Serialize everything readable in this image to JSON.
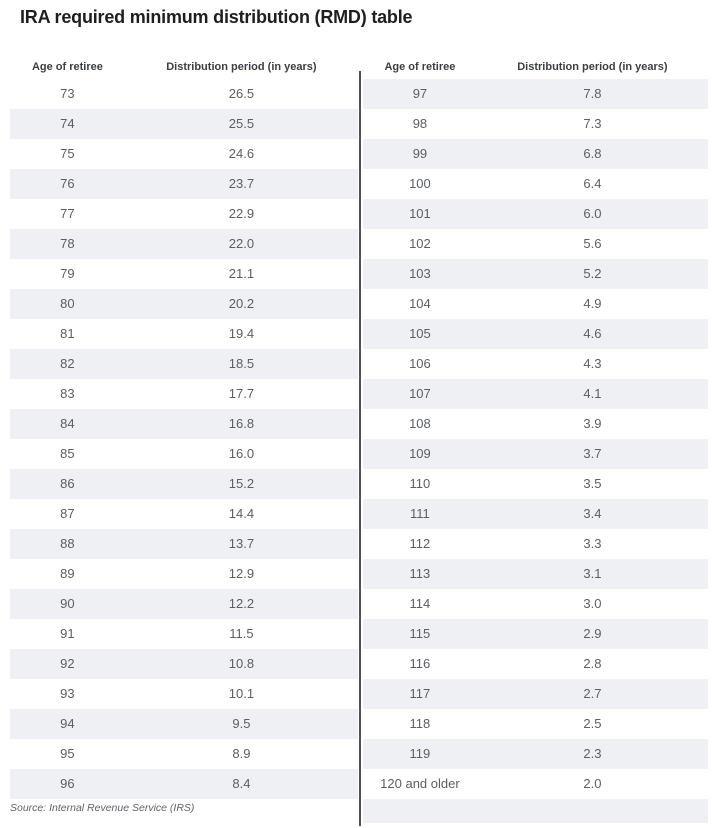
{
  "chart_data": {
    "type": "table",
    "title": "IRA required minimum distribution (RMD) table",
    "columns": [
      "Age of retiree",
      "Distribution period (in years)"
    ],
    "source": "Source: Internal Revenue Service (IRS)",
    "panels": [
      {
        "stripe_first_row": false,
        "trailing_empty_stripe": false,
        "rows": [
          [
            "73",
            "26.5"
          ],
          [
            "74",
            "25.5"
          ],
          [
            "75",
            "24.6"
          ],
          [
            "76",
            "23.7"
          ],
          [
            "77",
            "22.9"
          ],
          [
            "78",
            "22.0"
          ],
          [
            "79",
            "21.1"
          ],
          [
            "80",
            "20.2"
          ],
          [
            "81",
            "19.4"
          ],
          [
            "82",
            "18.5"
          ],
          [
            "83",
            "17.7"
          ],
          [
            "84",
            "16.8"
          ],
          [
            "85",
            "16.0"
          ],
          [
            "86",
            "15.2"
          ],
          [
            "87",
            "14.4"
          ],
          [
            "88",
            "13.7"
          ],
          [
            "89",
            "12.9"
          ],
          [
            "90",
            "12.2"
          ],
          [
            "91",
            "11.5"
          ],
          [
            "92",
            "10.8"
          ],
          [
            "93",
            "10.1"
          ],
          [
            "94",
            "9.5"
          ],
          [
            "95",
            "8.9"
          ],
          [
            "96",
            "8.4"
          ]
        ]
      },
      {
        "stripe_first_row": true,
        "trailing_empty_stripe": true,
        "rows": [
          [
            "97",
            "7.8"
          ],
          [
            "98",
            "7.3"
          ],
          [
            "99",
            "6.8"
          ],
          [
            "100",
            "6.4"
          ],
          [
            "101",
            "6.0"
          ],
          [
            "102",
            "5.6"
          ],
          [
            "103",
            "5.2"
          ],
          [
            "104",
            "4.9"
          ],
          [
            "105",
            "4.6"
          ],
          [
            "106",
            "4.3"
          ],
          [
            "107",
            "4.1"
          ],
          [
            "108",
            "3.9"
          ],
          [
            "109",
            "3.7"
          ],
          [
            "110",
            "3.5"
          ],
          [
            "111",
            "3.4"
          ],
          [
            "112",
            "3.3"
          ],
          [
            "113",
            "3.1"
          ],
          [
            "114",
            "3.0"
          ],
          [
            "115",
            "2.9"
          ],
          [
            "116",
            "2.8"
          ],
          [
            "117",
            "2.7"
          ],
          [
            "118",
            "2.5"
          ],
          [
            "119",
            "2.3"
          ],
          [
            "120 and older",
            "2.0"
          ]
        ]
      }
    ],
    "colors": {
      "stripe": "#eef0f3",
      "divider": "#515151",
      "title_text": "#1d1e20",
      "header_text": "#3b4045",
      "cell_text": "#5a5f65",
      "source_text": "#5f646a"
    }
  }
}
